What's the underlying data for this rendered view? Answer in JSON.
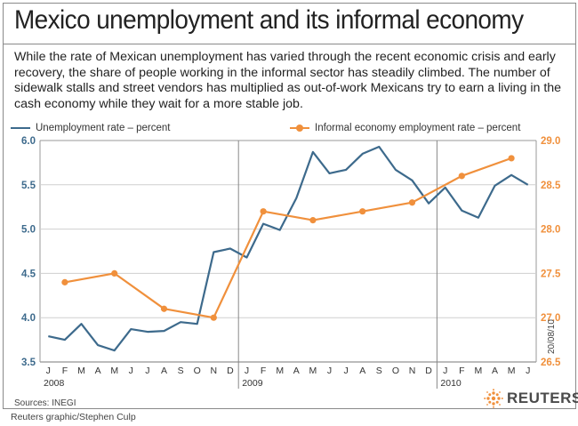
{
  "title": "Mexico unemployment and its informal economy",
  "description": "While the rate of Mexican unemployment has varied through the recent economic crisis and early recovery, the share of people working in the informal sector has steadily climbed. The number of sidewalk stalls and street vendors has multiplied as out-of-work Mexicans try to earn a living in the cash economy while they wait for a more stable job.",
  "source": "Sources: INEGI",
  "credit": "Reuters graphic/Stephen Culp",
  "date_tag": "20/08/10",
  "logo_text": "REUTERS",
  "colors": {
    "unemployment": "#3d6a8c",
    "informal": "#f0903c",
    "axis_right_text": "#f0903c",
    "axis_left_text": "#3d6a8c"
  },
  "chart_data": {
    "type": "line",
    "title": "",
    "x": {
      "month_labels": [
        "J",
        "F",
        "M",
        "A",
        "M",
        "J",
        "J",
        "A",
        "S",
        "O",
        "N",
        "D",
        "J",
        "F",
        "M",
        "A",
        "M",
        "J",
        "J",
        "A",
        "S",
        "O",
        "N",
        "D",
        "J",
        "F",
        "M",
        "A",
        "M",
        "J"
      ],
      "year_labels": [
        "2008",
        "2009",
        "2010"
      ],
      "grid": "vertical line at each year start"
    },
    "left_axis": {
      "ylim": [
        3.5,
        6.0
      ],
      "ticks": [
        "3.5",
        "4.0",
        "4.5",
        "5.0",
        "5.5",
        "6.0"
      ]
    },
    "right_axis": {
      "ylim": [
        26.5,
        29.0
      ],
      "ticks": [
        "26.5",
        "27.0",
        "27.5",
        "28.0",
        "28.5",
        "29.0"
      ]
    },
    "series": [
      {
        "name": "Unemployment rate – percent",
        "axis": "left",
        "values": [
          3.79,
          3.75,
          3.93,
          3.69,
          3.63,
          3.87,
          3.84,
          3.85,
          3.95,
          3.93,
          4.74,
          4.78,
          4.68,
          5.06,
          4.99,
          5.35,
          5.87,
          5.63,
          5.67,
          5.85,
          5.93,
          5.67,
          5.55,
          5.29,
          5.47,
          5.21,
          5.13,
          5.49,
          5.61,
          5.5
        ]
      },
      {
        "name": "Informal economy employment rate – percent",
        "axis": "right",
        "points": [
          {
            "month_index": 1,
            "value": 27.4
          },
          {
            "month_index": 4,
            "value": 27.5
          },
          {
            "month_index": 7,
            "value": 27.1
          },
          {
            "month_index": 10,
            "value": 27.0
          },
          {
            "month_index": 13,
            "value": 28.2
          },
          {
            "month_index": 16,
            "value": 28.1
          },
          {
            "month_index": 19,
            "value": 28.2
          },
          {
            "month_index": 22,
            "value": 28.3
          },
          {
            "month_index": 25,
            "value": 28.6
          },
          {
            "month_index": 28,
            "value": 28.8
          }
        ]
      }
    ]
  }
}
